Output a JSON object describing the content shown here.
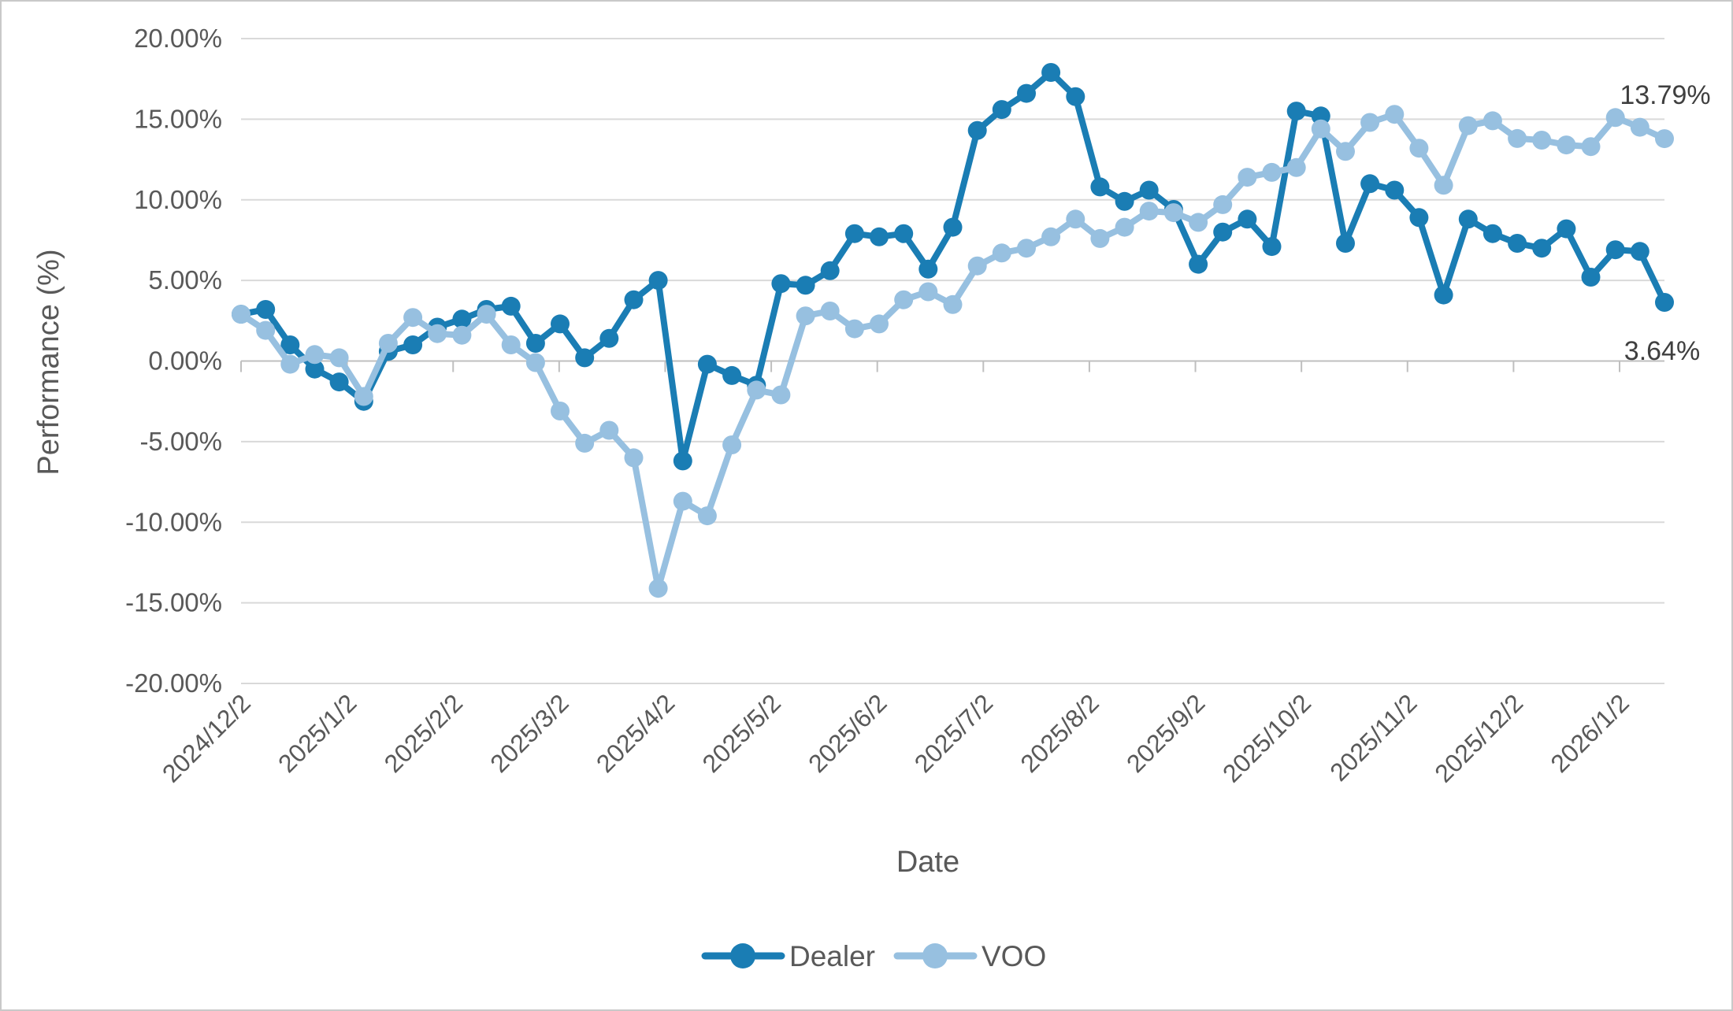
{
  "chart_data": {
    "type": "line",
    "title": "",
    "xlabel": "Date",
    "ylabel": "Performance (%)",
    "ylim": [
      -20,
      20
    ],
    "y_tick_step": 5,
    "grid": true,
    "legend_position": "bottom",
    "y_tick_labels": [
      "20.00%",
      "15.00%",
      "10.00%",
      "5.00%",
      "0.00%",
      "-5.00%",
      "-10.00%",
      "-15.00%",
      "-20.00%"
    ],
    "x_tick_labels": [
      "2024/12/2",
      "2025/1/2",
      "2025/2/2",
      "2025/3/2",
      "2025/4/2",
      "2025/5/2",
      "2025/6/2",
      "2025/7/2",
      "2025/8/2",
      "2025/9/2",
      "2025/10/2",
      "2025/11/2",
      "2025/12/2",
      "2026/1/2"
    ],
    "x": [
      "2024/12/2",
      "2024/12/9",
      "2024/12/16",
      "2024/12/23",
      "2024/12/30",
      "2025/1/6",
      "2025/1/13",
      "2025/1/20",
      "2025/1/27",
      "2025/2/3",
      "2025/2/10",
      "2025/2/17",
      "2025/2/24",
      "2025/3/3",
      "2025/3/10",
      "2025/3/17",
      "2025/3/24",
      "2025/3/31",
      "2025/4/7",
      "2025/4/14",
      "2025/4/21",
      "2025/4/28",
      "2025/5/5",
      "2025/5/12",
      "2025/5/19",
      "2025/5/26",
      "2025/6/2",
      "2025/6/9",
      "2025/6/16",
      "2025/6/23",
      "2025/6/30",
      "2025/7/7",
      "2025/7/14",
      "2025/7/21",
      "2025/7/28",
      "2025/8/4",
      "2025/8/11",
      "2025/8/18",
      "2025/8/25",
      "2025/9/1",
      "2025/9/8",
      "2025/9/15",
      "2025/9/22",
      "2025/9/29",
      "2025/10/6",
      "2025/10/13",
      "2025/10/20",
      "2025/10/27",
      "2025/11/3",
      "2025/11/10",
      "2025/11/17",
      "2025/11/24",
      "2025/12/1",
      "2025/12/8",
      "2025/12/15",
      "2025/12/22",
      "2025/12/29",
      "2026/1/5",
      "2026/1/12"
    ],
    "series": [
      {
        "name": "Dealer",
        "color": "#1a7db4",
        "values": [
          2.9,
          3.2,
          1.0,
          -0.5,
          -1.3,
          -2.5,
          0.6,
          1.0,
          2.1,
          2.6,
          3.2,
          3.4,
          1.1,
          2.3,
          0.2,
          1.4,
          3.8,
          5.0,
          -6.2,
          -0.2,
          -0.9,
          -1.5,
          4.8,
          4.7,
          5.6,
          7.9,
          7.7,
          7.9,
          5.7,
          8.3,
          14.3,
          15.6,
          16.6,
          17.9,
          16.4,
          10.8,
          9.9,
          10.6,
          9.4,
          6.0,
          8.0,
          8.8,
          7.1,
          15.5,
          15.2,
          7.3,
          11.0,
          10.6,
          8.9,
          4.1,
          8.8,
          7.9,
          7.3,
          7.0,
          8.2,
          5.2,
          6.9,
          6.8,
          3.64
        ]
      },
      {
        "name": "VOO",
        "color": "#97c0e0",
        "values": [
          2.9,
          1.9,
          -0.2,
          0.4,
          0.2,
          -2.2,
          1.1,
          2.7,
          1.7,
          1.6,
          2.9,
          1.0,
          -0.1,
          -3.1,
          -5.1,
          -4.3,
          -6.0,
          -14.1,
          -8.7,
          -9.6,
          -5.2,
          -1.8,
          -2.1,
          2.8,
          3.1,
          2.0,
          2.3,
          3.8,
          4.3,
          3.5,
          5.9,
          6.7,
          7.0,
          7.7,
          8.8,
          7.6,
          8.3,
          9.3,
          9.2,
          8.6,
          9.7,
          11.4,
          11.7,
          12.0,
          14.4,
          13.0,
          14.8,
          15.3,
          13.2,
          10.9,
          14.6,
          14.9,
          13.8,
          13.7,
          13.4,
          13.3,
          15.1,
          14.5,
          13.79
        ]
      }
    ],
    "annotations": [
      {
        "text": "13.79%",
        "series": "VOO",
        "position": "above"
      },
      {
        "text": "3.64%",
        "series": "Dealer",
        "position": "below"
      }
    ]
  },
  "colors": {
    "grid": "#d9d9d9",
    "zero_axis": "#bfbfbf",
    "axis_text": "#595959",
    "annotation_text": "#3f3f3f",
    "background": "#ffffff",
    "border": "#c9c9c9"
  }
}
